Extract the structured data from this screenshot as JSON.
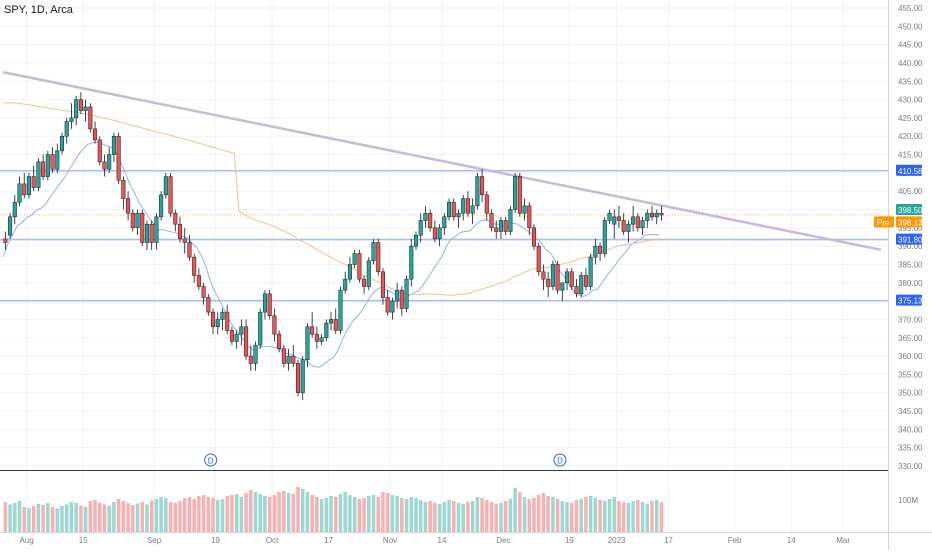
{
  "header": {
    "title": "SPY, 1D, Arca"
  },
  "colors": {
    "up": "#26a69a",
    "up_fill": "#26a69a",
    "down": "#ef5350",
    "grid": "#f0f3fa",
    "axis_text": "#787b86",
    "hline": "#a8bdf5",
    "trend": "#c7b8dc",
    "ma_fast": "#8fb0ee",
    "ma_slow": "#f5c089",
    "label_blue": "#2962ff",
    "label_green": "#26a69a",
    "label_orange": "#ff9800",
    "dotted": "#f5a623"
  },
  "chart_data": {
    "type": "candlestick",
    "title": "SPY, 1D, Arca",
    "ylim": [
      330,
      455
    ],
    "y_ticks": [
      330,
      335,
      340,
      345,
      350,
      355,
      360,
      365,
      370,
      375,
      380,
      385,
      390,
      395,
      400,
      405,
      410,
      415,
      420,
      425,
      430,
      435,
      440,
      445,
      450,
      455
    ],
    "x_tick_labels": [
      "Aug",
      "15",
      "Sep",
      "19",
      "Oct",
      "17",
      "Nov",
      "14",
      "Dec",
      "19",
      "2023",
      "17",
      "Feb",
      "14",
      "Mar"
    ],
    "price_labels": [
      {
        "text": "410.58",
        "kind": "blue",
        "value": 410.58
      },
      {
        "text": "398.50",
        "kind": "green",
        "value": 398.5
      },
      {
        "text": "398.13",
        "kind": "orange",
        "prefix": "Pre",
        "value": 398.13
      },
      {
        "text": "391.80",
        "kind": "blue",
        "value": 391.8
      },
      {
        "text": "375.13",
        "kind": "blue",
        "value": 375.13
      }
    ],
    "horizontal_levels": [
      410.58,
      391.8,
      375.13
    ],
    "dotted_level": 398.5,
    "trendline": {
      "start": [
        0,
        437.5
      ],
      "end": [
        186,
        389
      ]
    },
    "dividend_markers": [
      {
        "bar": 44,
        "label": "D"
      },
      {
        "bar": 118,
        "label": "D"
      }
    ],
    "volume_label": "100M",
    "bar_count": 140,
    "candles": [
      [
        392,
        394,
        389,
        391
      ],
      [
        393,
        399,
        392,
        398
      ],
      [
        398,
        404,
        396,
        402
      ],
      [
        402,
        409,
        401,
        407
      ],
      [
        407,
        410,
        403,
        404
      ],
      [
        404,
        410,
        403,
        409
      ],
      [
        409,
        412,
        405,
        406
      ],
      [
        406,
        414,
        405,
        413
      ],
      [
        413,
        415,
        408,
        409
      ],
      [
        409,
        416,
        408,
        415
      ],
      [
        415,
        417,
        410,
        411
      ],
      [
        411,
        418,
        410,
        416
      ],
      [
        416,
        421,
        415,
        420
      ],
      [
        420,
        425,
        418,
        424
      ],
      [
        424,
        429,
        422,
        425
      ],
      [
        425,
        431,
        423,
        430
      ],
      [
        430,
        432,
        426,
        427
      ],
      [
        427,
        430,
        424,
        428
      ],
      [
        428,
        429,
        421,
        422
      ],
      [
        422,
        424,
        418,
        419
      ],
      [
        419,
        420,
        412,
        413
      ],
      [
        413,
        415,
        409,
        411
      ],
      [
        411,
        417,
        410,
        415
      ],
      [
        415,
        421,
        413,
        420
      ],
      [
        420,
        421,
        407,
        408
      ],
      [
        408,
        409,
        400,
        403
      ],
      [
        403,
        405,
        397,
        399
      ],
      [
        399,
        400,
        394,
        395
      ],
      [
        395,
        400,
        393,
        399
      ],
      [
        399,
        400,
        390,
        391
      ],
      [
        391,
        397,
        389,
        396
      ],
      [
        396,
        397,
        389,
        391
      ],
      [
        391,
        399,
        389,
        398
      ],
      [
        398,
        405,
        397,
        404
      ],
      [
        404,
        410,
        403,
        409
      ],
      [
        409,
        410,
        398,
        399
      ],
      [
        399,
        400,
        394,
        396
      ],
      [
        396,
        398,
        391,
        392
      ],
      [
        392,
        395,
        388,
        391
      ],
      [
        391,
        393,
        386,
        387
      ],
      [
        387,
        388,
        380,
        382
      ],
      [
        382,
        384,
        378,
        379
      ],
      [
        379,
        380,
        374,
        376
      ],
      [
        376,
        377,
        371,
        372
      ],
      [
        372,
        373,
        366,
        368
      ],
      [
        368,
        372,
        366,
        370
      ],
      [
        370,
        373,
        367,
        372
      ],
      [
        372,
        374,
        366,
        367
      ],
      [
        367,
        368,
        363,
        364
      ],
      [
        364,
        367,
        362,
        366
      ],
      [
        366,
        370,
        363,
        368
      ],
      [
        368,
        370,
        359,
        360
      ],
      [
        360,
        363,
        356,
        358
      ],
      [
        358,
        364,
        356,
        363
      ],
      [
        363,
        373,
        362,
        372
      ],
      [
        372,
        378,
        370,
        377
      ],
      [
        377,
        378,
        370,
        371
      ],
      [
        371,
        373,
        364,
        366
      ],
      [
        366,
        367,
        361,
        362
      ],
      [
        362,
        363,
        357,
        358
      ],
      [
        358,
        362,
        356,
        360
      ],
      [
        360,
        363,
        357,
        358
      ],
      [
        358,
        359,
        349,
        350
      ],
      [
        350,
        360,
        348,
        359
      ],
      [
        359,
        369,
        357,
        368
      ],
      [
        368,
        372,
        365,
        366
      ],
      [
        366,
        368,
        362,
        364
      ],
      [
        364,
        366,
        363,
        365
      ],
      [
        365,
        370,
        364,
        369
      ],
      [
        369,
        372,
        367,
        370
      ],
      [
        370,
        373,
        366,
        367
      ],
      [
        367,
        379,
        366,
        378
      ],
      [
        378,
        383,
        377,
        381
      ],
      [
        381,
        387,
        380,
        385
      ],
      [
        385,
        389,
        384,
        388
      ],
      [
        388,
        389,
        380,
        381
      ],
      [
        381,
        382,
        377,
        379
      ],
      [
        379,
        387,
        378,
        386
      ],
      [
        386,
        392,
        385,
        391
      ],
      [
        391,
        392,
        382,
        383
      ],
      [
        383,
        384,
        374,
        376
      ],
      [
        376,
        378,
        371,
        372
      ],
      [
        372,
        376,
        370,
        375
      ],
      [
        375,
        380,
        373,
        378
      ],
      [
        378,
        379,
        371,
        373
      ],
      [
        373,
        382,
        372,
        381
      ],
      [
        381,
        392,
        379,
        390
      ],
      [
        390,
        394,
        389,
        393
      ],
      [
        393,
        399,
        391,
        397
      ],
      [
        397,
        401,
        395,
        399
      ],
      [
        399,
        400,
        394,
        395
      ],
      [
        395,
        397,
        391,
        392
      ],
      [
        392,
        396,
        390,
        395
      ],
      [
        395,
        399,
        393,
        398
      ],
      [
        398,
        403,
        397,
        402
      ],
      [
        402,
        403,
        397,
        398
      ],
      [
        398,
        400,
        395,
        399
      ],
      [
        399,
        404,
        397,
        403
      ],
      [
        403,
        405,
        398,
        399
      ],
      [
        399,
        403,
        396,
        401
      ],
      [
        401,
        410,
        400,
        409
      ],
      [
        409,
        411,
        402,
        404
      ],
      [
        404,
        405,
        397,
        399
      ],
      [
        399,
        400,
        394,
        395
      ],
      [
        395,
        397,
        392,
        394
      ],
      [
        394,
        398,
        392,
        397
      ],
      [
        397,
        398,
        393,
        394
      ],
      [
        394,
        401,
        393,
        400
      ],
      [
        400,
        410,
        399,
        409
      ],
      [
        409,
        410,
        398,
        399
      ],
      [
        399,
        403,
        397,
        401
      ],
      [
        401,
        402,
        393,
        395
      ],
      [
        395,
        396,
        389,
        390
      ],
      [
        390,
        391,
        382,
        383
      ],
      [
        383,
        385,
        378,
        381
      ],
      [
        381,
        383,
        376,
        379
      ],
      [
        379,
        386,
        378,
        385
      ],
      [
        385,
        386,
        377,
        378
      ],
      [
        378,
        379,
        375,
        380
      ],
      [
        380,
        384,
        378,
        383
      ],
      [
        383,
        384,
        378,
        379
      ],
      [
        379,
        381,
        376,
        377
      ],
      [
        377,
        383,
        376,
        382
      ],
      [
        382,
        384,
        378,
        379
      ],
      [
        379,
        388,
        378,
        387
      ],
      [
        387,
        392,
        385,
        390
      ],
      [
        390,
        391,
        386,
        388
      ],
      [
        388,
        398,
        387,
        397
      ],
      [
        397,
        400,
        396,
        399
      ],
      [
        396,
        400,
        392,
        398
      ],
      [
        398,
        401,
        395,
        397
      ],
      [
        397,
        399,
        393,
        394
      ],
      [
        394,
        397,
        391,
        396
      ],
      [
        396,
        401,
        394,
        398
      ],
      [
        398,
        399,
        394,
        395
      ],
      [
        395,
        398,
        393,
        397
      ],
      [
        397,
        400,
        395,
        399
      ],
      [
        399,
        401,
        397,
        398
      ],
      [
        398,
        400,
        396,
        399
      ],
      [
        399,
        401,
        397,
        398.5
      ]
    ],
    "volume": [
      60,
      55,
      58,
      62,
      50,
      48,
      52,
      56,
      54,
      58,
      50,
      47,
      52,
      55,
      60,
      58,
      53,
      50,
      62,
      64,
      58,
      55,
      52,
      60,
      66,
      62,
      58,
      54,
      57,
      60,
      55,
      63,
      66,
      70,
      68,
      60,
      58,
      62,
      68,
      70,
      66,
      72,
      74,
      70,
      68,
      64,
      66,
      72,
      74,
      76,
      70,
      78,
      84,
      80,
      76,
      72,
      70,
      74,
      80,
      82,
      78,
      76,
      90,
      86,
      80,
      74,
      70,
      66,
      68,
      72,
      70,
      76,
      80,
      74,
      70,
      66,
      68,
      72,
      74,
      70,
      80,
      78,
      74,
      72,
      68,
      66,
      70,
      68,
      64,
      60,
      62,
      58,
      56,
      60,
      64,
      62,
      58,
      56,
      60,
      62,
      70,
      68,
      64,
      60,
      56,
      58,
      62,
      66,
      88,
      80,
      70,
      66,
      68,
      74,
      78,
      72,
      70,
      66,
      62,
      60,
      58,
      64,
      66,
      70,
      72,
      68,
      64,
      62,
      66,
      70,
      62,
      60,
      58,
      62,
      64,
      60,
      56,
      62,
      64,
      60
    ]
  }
}
